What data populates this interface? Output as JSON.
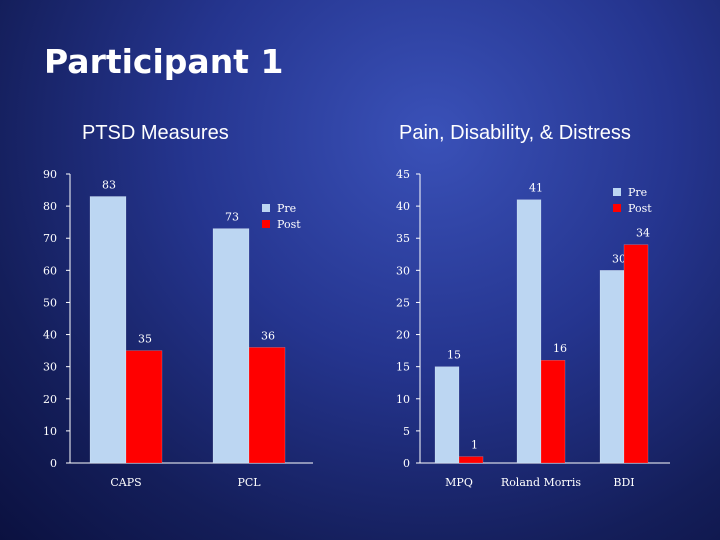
{
  "slide": {
    "title": "Participant 1"
  },
  "colors": {
    "pre": "#bcd6f2",
    "post": "#ff0000",
    "axis": "#ffffff",
    "text": "#ffffff"
  },
  "chart_data": [
    {
      "type": "bar",
      "title": "PTSD Measures",
      "categories": [
        "CAPS",
        "PCL"
      ],
      "series": [
        {
          "name": "Pre",
          "values": [
            83,
            73
          ]
        },
        {
          "name": "Post",
          "values": [
            35,
            36
          ]
        }
      ],
      "ylim": [
        0,
        90
      ],
      "yticks": [
        0,
        10,
        20,
        30,
        40,
        50,
        60,
        70,
        80,
        90
      ],
      "xlabel": "",
      "ylabel": "",
      "legend": "top-right",
      "grid": false
    },
    {
      "type": "bar",
      "title": "Pain, Disability, & Distress",
      "categories": [
        "MPQ",
        "Roland Morris",
        "BDI"
      ],
      "series": [
        {
          "name": "Pre",
          "values": [
            15,
            41,
            30
          ]
        },
        {
          "name": "Post",
          "values": [
            1,
            16,
            34
          ]
        }
      ],
      "ylim": [
        0,
        45
      ],
      "yticks": [
        0,
        5,
        10,
        15,
        20,
        25,
        30,
        35,
        40,
        45
      ],
      "xlabel": "",
      "ylabel": "",
      "legend": "top-right",
      "grid": false
    }
  ]
}
